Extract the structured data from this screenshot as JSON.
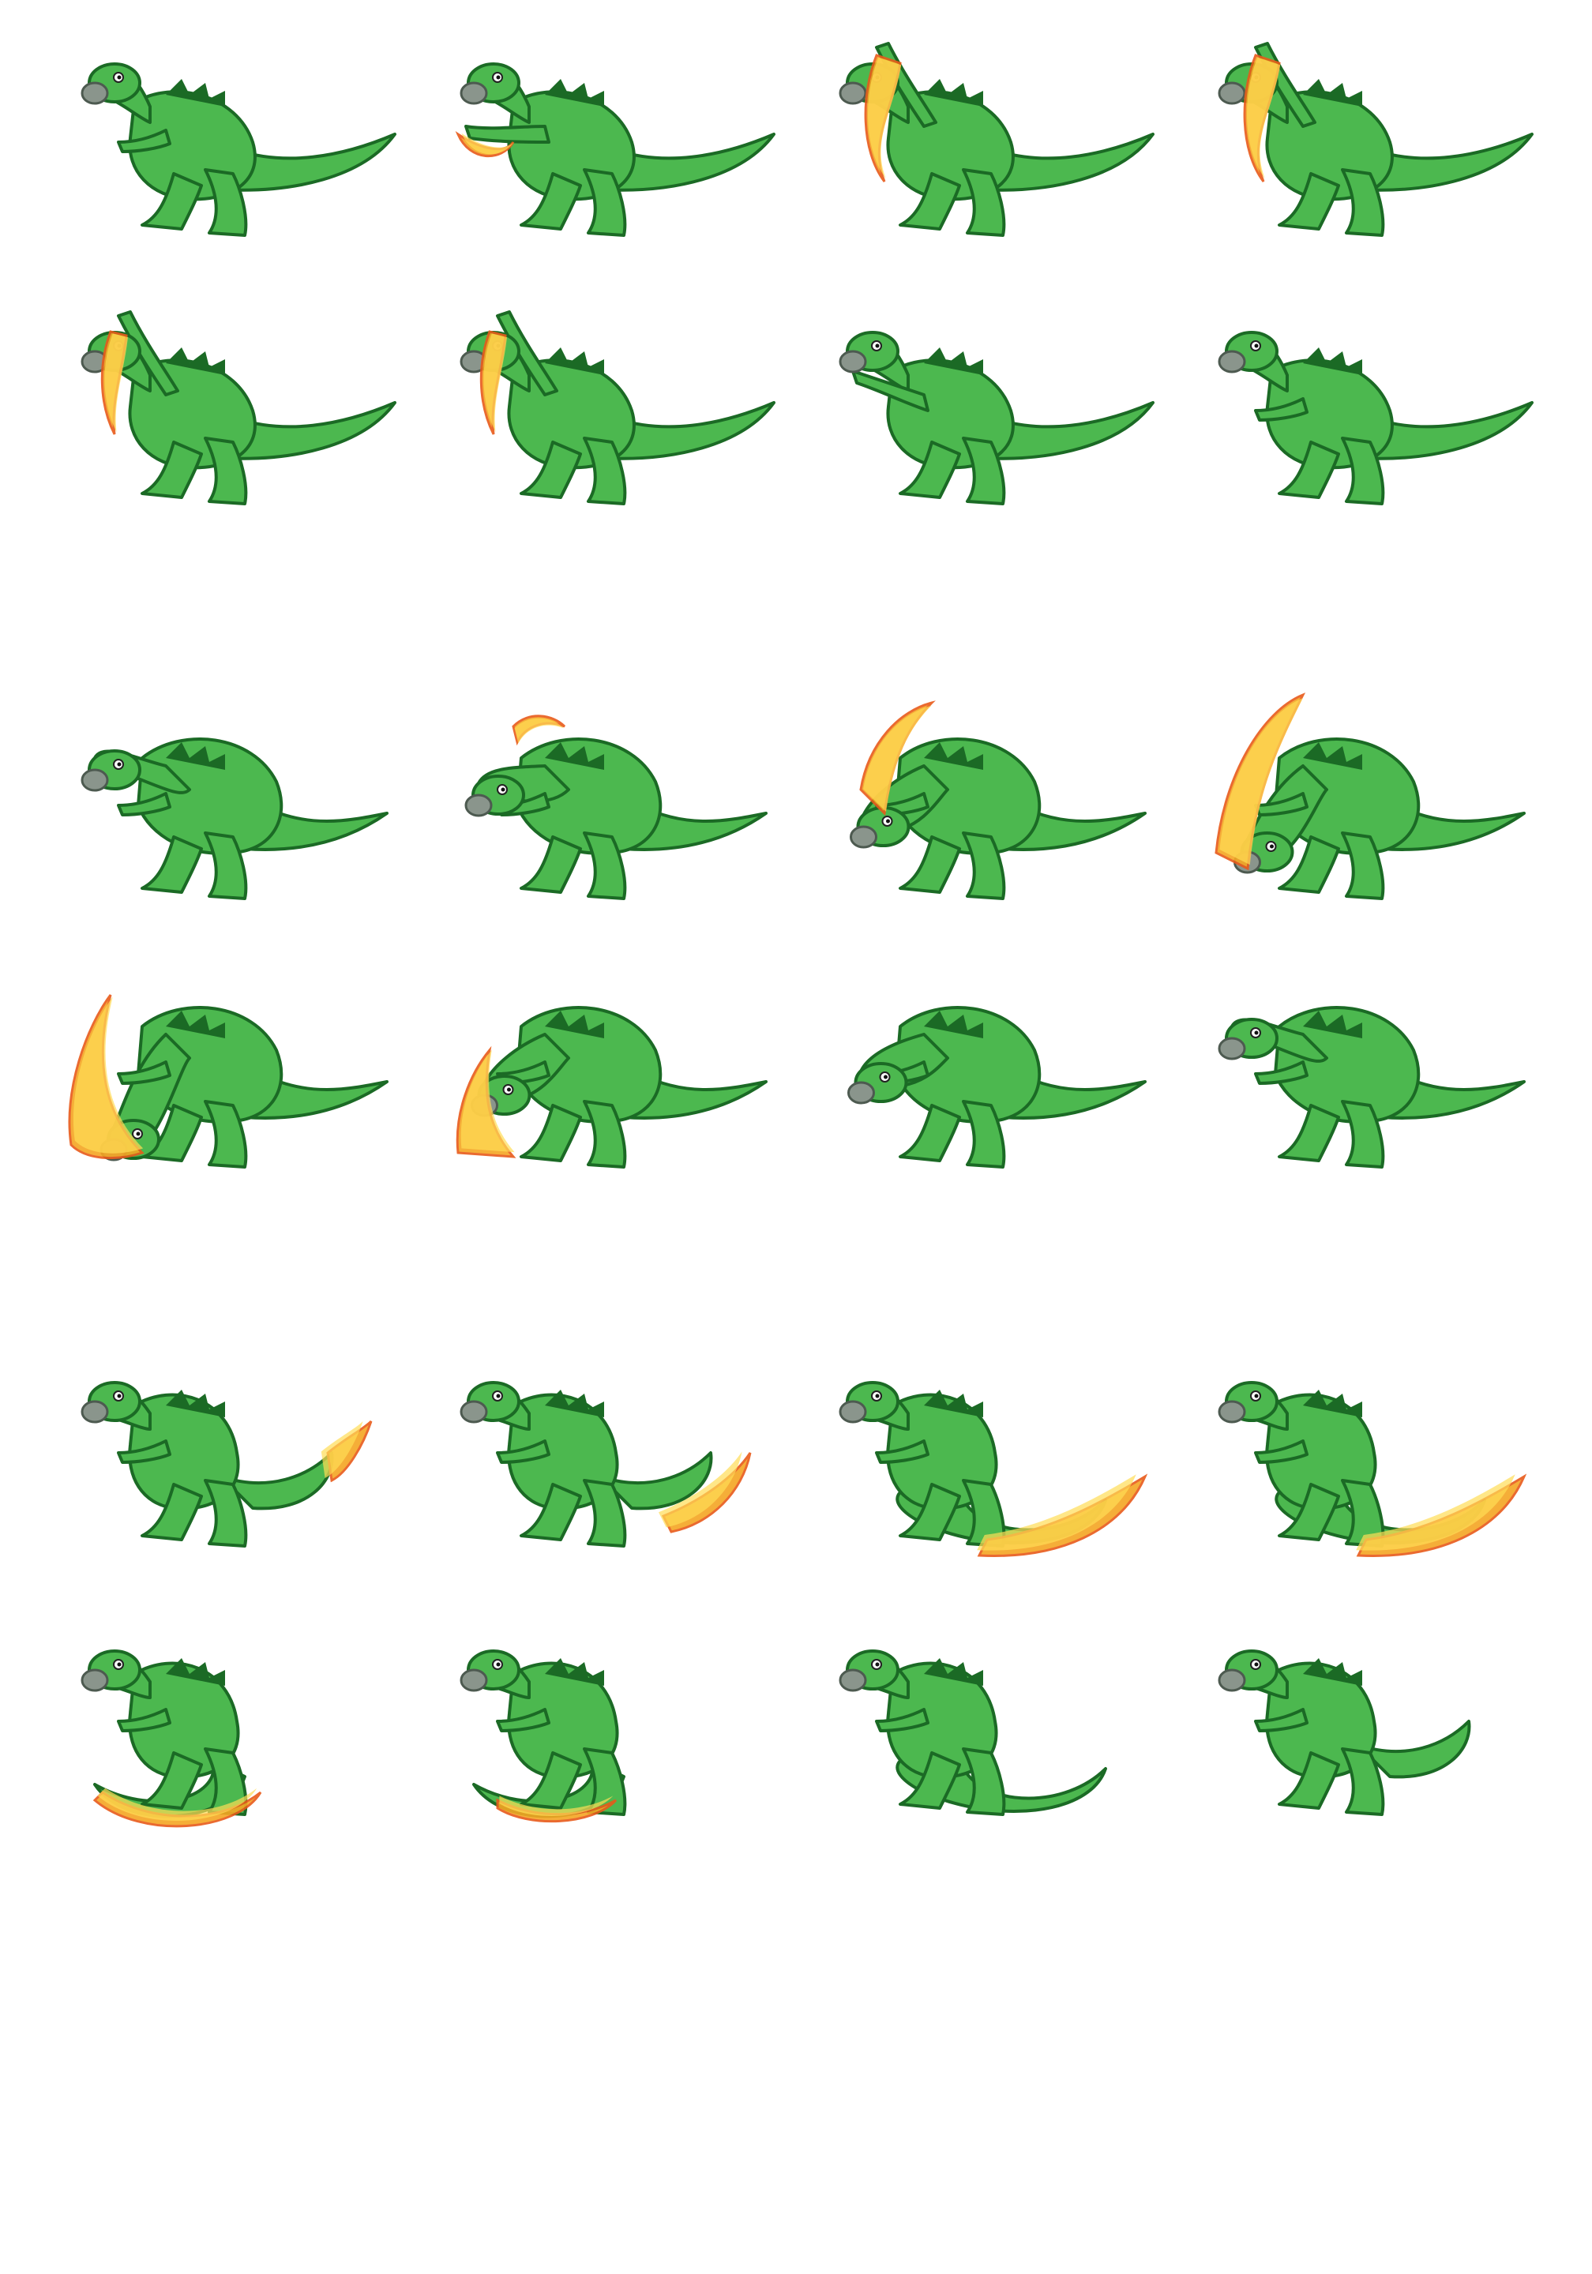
{
  "sheet": {
    "background": "#ffffff",
    "colors": {
      "body": "#4cb84f",
      "outline": "#1b6a25",
      "belly_line": "#1f7a2a",
      "beak": "#8a958c",
      "beak_outline": "#4d5a50",
      "claw": "#9aa59c",
      "flame_outer": "#f5a623",
      "flame_inner": "#ffdd55",
      "flame_red": "#e85a1a"
    },
    "animations": [
      {
        "name_key": "row-group-1",
        "kind": "arm-fire-attack",
        "frames": [
          {
            "pose": "idle",
            "fire": "none"
          },
          {
            "pose": "arm-forward",
            "fire": "forearm"
          },
          {
            "pose": "arm-raised",
            "fire": "arm"
          },
          {
            "pose": "arm-raised-high",
            "fire": "arm"
          },
          {
            "pose": "arm-raised-high",
            "fire": "arm-fading"
          },
          {
            "pose": "arm-raised",
            "fire": "arm-fading"
          },
          {
            "pose": "arm-lowering",
            "fire": "none"
          },
          {
            "pose": "idle",
            "fire": "none"
          }
        ]
      },
      {
        "name_key": "row-group-2",
        "kind": "head-fire-bash",
        "frames": [
          {
            "pose": "head-low",
            "fire": "none"
          },
          {
            "pose": "head-down",
            "fire": "head-small"
          },
          {
            "pose": "head-curl",
            "fire": "back"
          },
          {
            "pose": "head-curl-deep",
            "fire": "back-large"
          },
          {
            "pose": "head-slam",
            "fire": "head-ground"
          },
          {
            "pose": "head-curl",
            "fire": "head-ground-small"
          },
          {
            "pose": "head-rising",
            "fire": "none"
          },
          {
            "pose": "head-low",
            "fire": "none"
          }
        ]
      },
      {
        "name_key": "row-group-3",
        "kind": "tail-fire-sweep",
        "frames": [
          {
            "pose": "tail-curl-start",
            "fire": "tail-tip"
          },
          {
            "pose": "tail-curl",
            "fire": "tail"
          },
          {
            "pose": "tail-sweep",
            "fire": "tail-large"
          },
          {
            "pose": "tail-sweep-wide",
            "fire": "tail-large"
          },
          {
            "pose": "curled",
            "fire": "tail-under"
          },
          {
            "pose": "curled-tight",
            "fire": "tail-under-small"
          },
          {
            "pose": "tail-uncurl",
            "fire": "none"
          },
          {
            "pose": "idle-tail-wave",
            "fire": "none"
          }
        ]
      }
    ]
  }
}
